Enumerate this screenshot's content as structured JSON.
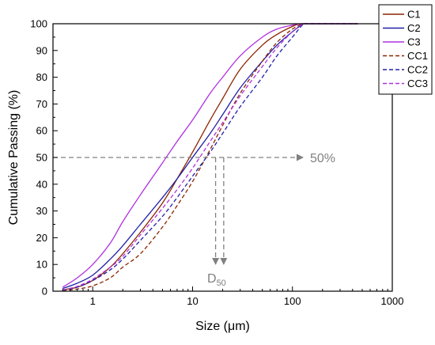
{
  "chart_data": {
    "type": "line",
    "xlabel": "Size (μm)",
    "ylabel": "Cumulative Passing (%)",
    "xscale": "log",
    "xlim": [
      0.4,
      1000
    ],
    "ylim": [
      0,
      100
    ],
    "xticks": [
      1,
      10,
      100,
      1000
    ],
    "xtick_labels": [
      "1",
      "10",
      "100",
      "1000"
    ],
    "yticks": [
      0,
      10,
      20,
      30,
      40,
      50,
      60,
      70,
      80,
      90,
      100
    ],
    "ytick_labels": [
      "0",
      "10",
      "20",
      "30",
      "40",
      "50",
      "60",
      "70",
      "80",
      "90",
      "100"
    ],
    "grid": false,
    "legend_position": "top-right",
    "series": [
      {
        "name": "C1",
        "color": "#8B2500",
        "dash": "solid",
        "x": [
          0.5,
          0.7,
          1,
          1.5,
          2,
          3,
          5,
          7,
          10,
          15,
          20,
          30,
          50,
          70,
          100,
          120,
          150,
          200,
          300,
          450
        ],
        "y": [
          0.5,
          1.5,
          4,
          9,
          14,
          22,
          33,
          42,
          52,
          64,
          72,
          83,
          92,
          96,
          99,
          100,
          100,
          100,
          100,
          100
        ]
      },
      {
        "name": "C2",
        "color": "#2020A8",
        "dash": "solid",
        "x": [
          0.5,
          0.7,
          1,
          1.5,
          2,
          3,
          5,
          7,
          10,
          15,
          20,
          30,
          50,
          70,
          100,
          130,
          150,
          200,
          300,
          450
        ],
        "y": [
          1,
          3,
          6,
          12,
          17,
          25,
          35,
          42,
          50,
          59,
          66,
          76,
          86,
          92,
          97,
          100,
          100,
          100,
          100,
          100
        ]
      },
      {
        "name": "C3",
        "color": "#B030E0",
        "dash": "solid",
        "x": [
          0.5,
          0.7,
          1,
          1.5,
          2,
          3,
          5,
          7,
          10,
          15,
          20,
          30,
          50,
          70,
          100,
          120,
          150,
          200,
          300,
          450
        ],
        "y": [
          1.5,
          5,
          10,
          18,
          26,
          36,
          48,
          56,
          64,
          74,
          80,
          88,
          95,
          98,
          99.5,
          100,
          100,
          100,
          100,
          100
        ]
      },
      {
        "name": "CC1",
        "color": "#8B2500",
        "dash": "dashed",
        "x": [
          0.5,
          0.7,
          1,
          1.5,
          2,
          3,
          5,
          7,
          10,
          15,
          20,
          30,
          50,
          70,
          100,
          130,
          150,
          200,
          300,
          450
        ],
        "y": [
          0.3,
          0.8,
          2,
          5,
          9,
          14,
          24,
          32,
          41,
          53,
          62,
          74,
          86,
          93,
          98,
          100,
          100,
          100,
          100,
          100
        ]
      },
      {
        "name": "CC2",
        "color": "#2020A8",
        "dash": "dashed",
        "x": [
          0.5,
          0.7,
          1,
          1.5,
          2,
          3,
          5,
          7,
          10,
          15,
          20,
          30,
          50,
          70,
          100,
          130,
          150,
          200,
          300,
          450
        ],
        "y": [
          0.5,
          1.5,
          4,
          8,
          12,
          19,
          28,
          35,
          43,
          52,
          59,
          69,
          80,
          88,
          95,
          100,
          100,
          100,
          100,
          100
        ]
      },
      {
        "name": "CC3",
        "color": "#B030E0",
        "dash": "dashed",
        "x": [
          0.5,
          0.7,
          1,
          1.5,
          2,
          3,
          5,
          7,
          10,
          15,
          20,
          30,
          50,
          70,
          100,
          130,
          150,
          200,
          300,
          450
        ],
        "y": [
          0.5,
          1.8,
          4.5,
          9,
          13,
          21,
          31,
          38,
          46,
          56,
          63,
          73,
          84,
          91,
          97,
          100,
          100,
          100,
          100,
          100
        ]
      }
    ],
    "annotations": {
      "hline_y": 50,
      "hline_x_end": 45,
      "pct_label": "50%",
      "vline_x": [
        17,
        20.5
      ],
      "d_label_main": "D",
      "d_label_sub": "50",
      "color": "#808080"
    }
  }
}
